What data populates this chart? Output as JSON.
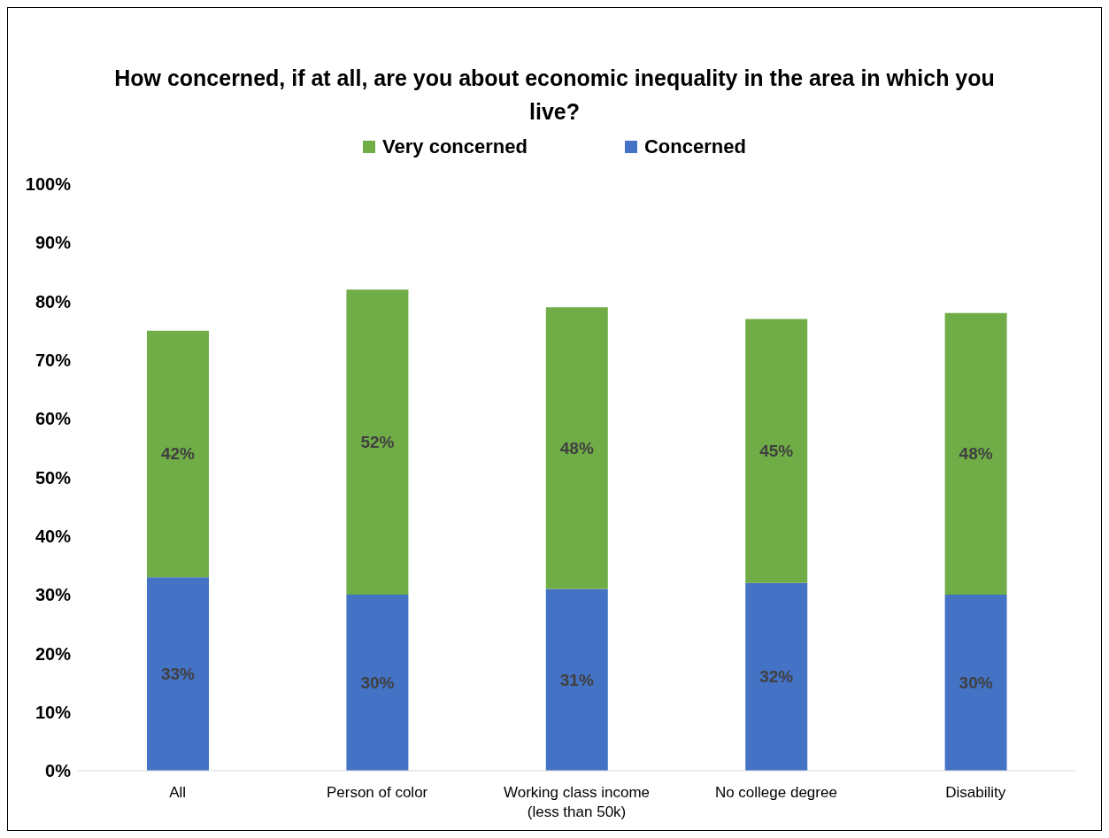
{
  "chart_data": {
    "type": "bar",
    "title": "How concerned, if at all, are you about economic inequality in the area in which you live?",
    "categories": [
      "All",
      "Person of color",
      "Working class income\n(less than 50k)",
      "No college degree",
      "Disability"
    ],
    "stacked": true,
    "series": [
      {
        "name": "Concerned",
        "color": "#4472c4",
        "values": [
          33,
          30,
          31,
          32,
          30
        ],
        "value_labels": [
          "33%",
          "30%",
          "31%",
          "32%",
          "30%"
        ]
      },
      {
        "name": "Very concerned",
        "color": "#70ad47",
        "values": [
          42,
          52,
          48,
          45,
          48
        ],
        "value_labels": [
          "42%",
          "52%",
          "48%",
          "45%",
          "48%"
        ]
      }
    ],
    "ylim": [
      0,
      100
    ],
    "yticks": [
      {
        "value": 0,
        "label": "0%"
      },
      {
        "value": 10,
        "label": "10%"
      },
      {
        "value": 20,
        "label": "20%"
      },
      {
        "value": 30,
        "label": "30%"
      },
      {
        "value": 40,
        "label": "40%"
      },
      {
        "value": 50,
        "label": "50%"
      },
      {
        "value": 60,
        "label": "60%"
      },
      {
        "value": 70,
        "label": "70%"
      },
      {
        "value": 80,
        "label": "80%"
      },
      {
        "value": 90,
        "label": "90%"
      },
      {
        "value": 100,
        "label": "100%"
      }
    ],
    "legend": "top"
  }
}
